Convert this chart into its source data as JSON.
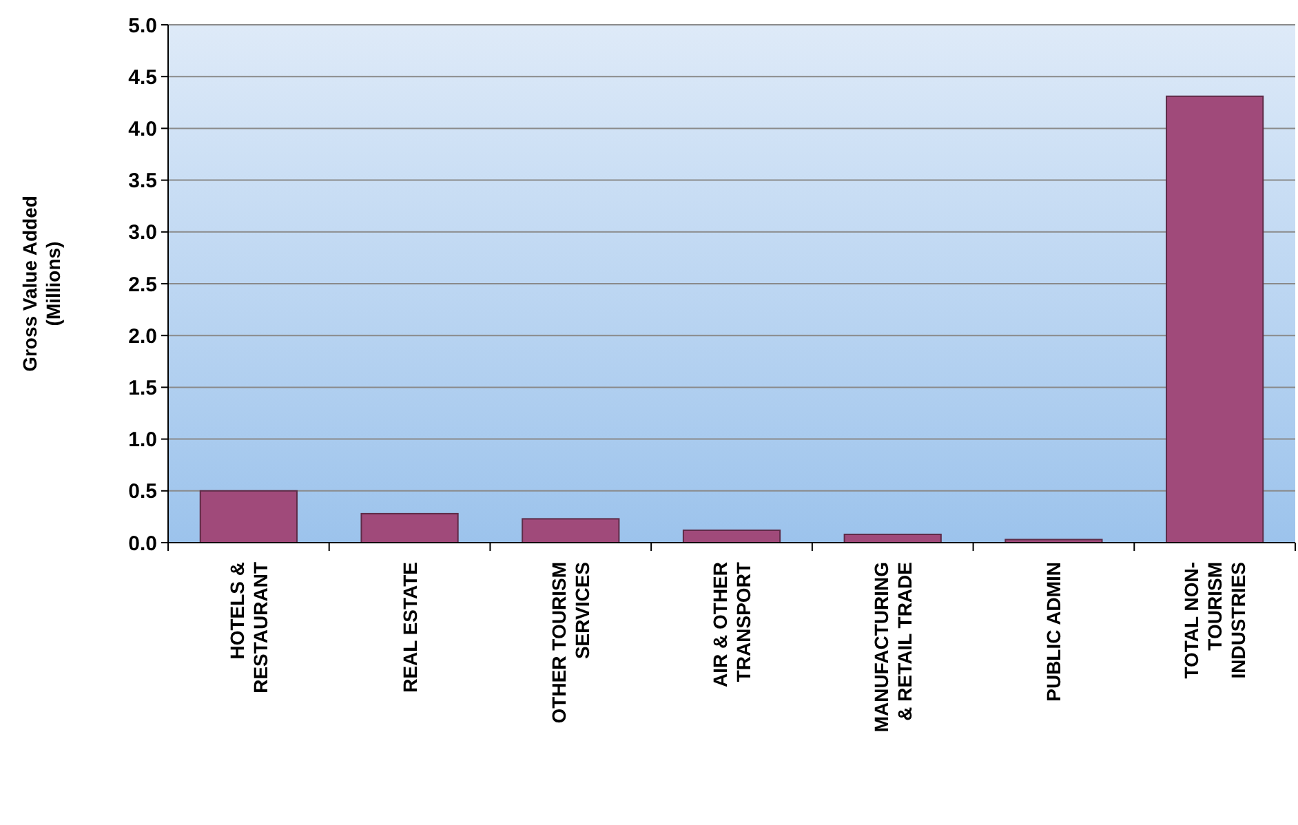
{
  "chart_data": {
    "type": "bar",
    "ylabel": "Gross Value Added (Millions)",
    "categories": [
      "HOTELS & RESTAURANT",
      "REAL ESTATE",
      "OTHER TOURISM SERVICES",
      "AIR & OTHER TRANSPORT",
      "MANUFACTURING & RETAIL TRADE",
      "PUBLIC ADMIN",
      "TOTAL NON-TOURISM INDUSTRIES"
    ],
    "values": [
      0.5,
      0.28,
      0.23,
      0.12,
      0.08,
      0.03,
      4.31
    ],
    "color": "#a04a7a",
    "ylim": [
      0,
      5
    ],
    "yticks": [
      {
        "value": 0,
        "label": "0.0"
      },
      {
        "value": 0.5,
        "label": "0.5"
      },
      {
        "value": 1,
        "label": "1.0"
      },
      {
        "value": 1.5,
        "label": "1.5"
      },
      {
        "value": 2,
        "label": "2.0"
      },
      {
        "value": 2.5,
        "label": "2.5"
      },
      {
        "value": 3,
        "label": "3.0"
      },
      {
        "value": 3.5,
        "label": "3.5"
      },
      {
        "value": 4,
        "label": "4.0"
      },
      {
        "value": 4.5,
        "label": "4.5"
      },
      {
        "value": 5,
        "label": "5.0"
      }
    ],
    "grid": "y"
  }
}
